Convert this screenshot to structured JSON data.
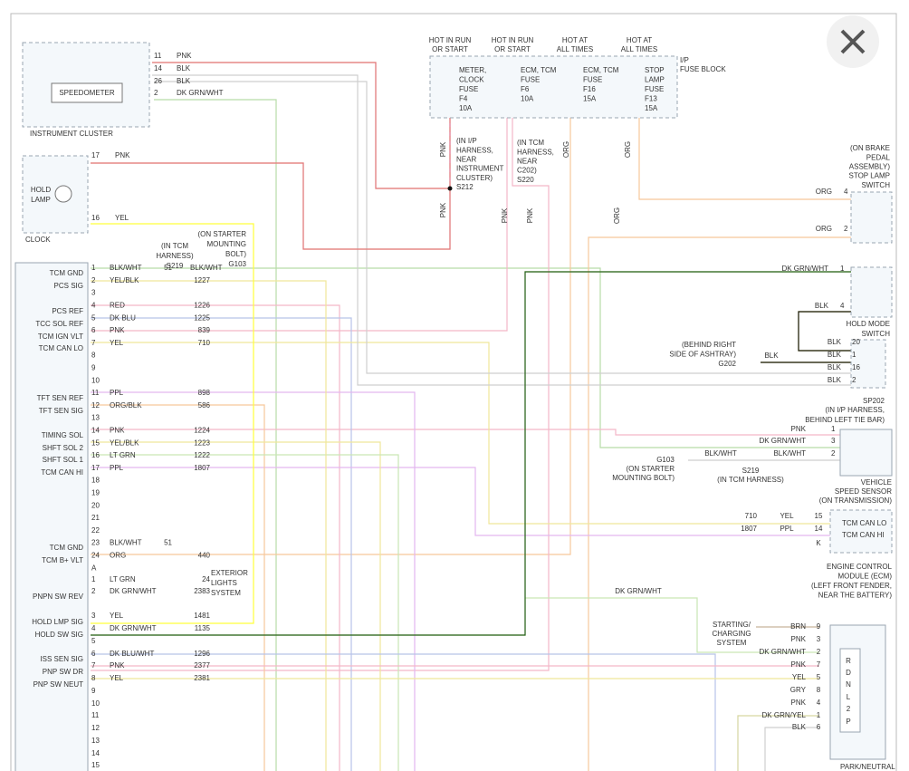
{
  "fuse_block": {
    "headers": [
      [
        "HOT IN RUN",
        "OR START"
      ],
      [
        "HOT IN RUN",
        "OR START"
      ],
      [
        "HOT AT",
        "ALL TIMES"
      ],
      [
        "HOT AT",
        "ALL TIMES"
      ]
    ],
    "label": [
      "I/P",
      "FUSE BLOCK"
    ],
    "fuses": [
      [
        "METER,",
        "CLOCK",
        "FUSE",
        "F4",
        "10A"
      ],
      [
        "ECM, TCM",
        "FUSE",
        "F6",
        "10A"
      ],
      [
        "ECM, TCM",
        "FUSE",
        "F16",
        "15A"
      ],
      [
        "STOP",
        "LAMP",
        "FUSE",
        "F13",
        "15A"
      ]
    ]
  },
  "instrument_cluster": {
    "component": "SPEEDOMETER",
    "label": "INSTRUMENT CLUSTER",
    "pins": [
      [
        "11",
        "PNK"
      ],
      [
        "14",
        "BLK"
      ],
      [
        "26",
        "BLK"
      ],
      [
        "2",
        "DK GRN/WHT"
      ]
    ]
  },
  "clock": {
    "component": [
      "HOLD",
      "LAMP"
    ],
    "label": "CLOCK",
    "pins": [
      [
        "17",
        "PNK"
      ],
      [
        "16",
        "YEL"
      ]
    ]
  },
  "splices": {
    "s212": [
      "(IN I/P",
      "HARNESS,",
      "NEAR",
      "INSTRUMENT",
      "CLUSTER)",
      "S212"
    ],
    "s220": [
      "(IN TCM",
      "HARNESS,",
      "NEAR",
      "C202)",
      "S220"
    ],
    "s219": [
      "(IN TCM",
      "HARNESS)",
      "S219"
    ],
    "g103": [
      "(ON STARTER",
      "MOUNTING",
      "BOLT)",
      "G103"
    ]
  },
  "wire_labels": [
    "PNK",
    "ORG",
    "ORG",
    "PNK",
    "PNK",
    "PNK",
    "ORG"
  ],
  "stop_lamp_switch": {
    "label": [
      "(ON BRAKE",
      "PEDAL",
      "ASSEMBLY)",
      "STOP LAMP",
      "SWITCH"
    ],
    "pins": [
      [
        "ORG",
        "4"
      ],
      [
        "ORG",
        "2"
      ]
    ]
  },
  "hold_mode_switch": {
    "label": [
      "HOLD MODE",
      "SWITCH"
    ],
    "pins": [
      [
        "DK GRN/WHT",
        "1"
      ],
      [
        "BLK",
        "4"
      ]
    ]
  },
  "sp202": {
    "pins": [
      [
        "BLK",
        "20"
      ],
      [
        "BLK",
        "1"
      ],
      [
        "BLK",
        "16"
      ],
      [
        "BLK",
        "2"
      ]
    ],
    "label": "SP202",
    "location": [
      "(IN I/P HARNESS,",
      "BEHIND LEFT TIE BAR)"
    ]
  },
  "g202": {
    "label": [
      "(BEHIND RIGHT",
      "SIDE OF ASHTRAY)",
      "G202"
    ],
    "wire": "BLK"
  },
  "vss": {
    "pins": [
      [
        "PNK",
        "1"
      ],
      [
        "DK GRN/WHT",
        "3"
      ],
      [
        "BLK/WHT",
        "2"
      ]
    ],
    "label": [
      "VEHICLE",
      "SPEED SENSOR",
      "(ON TRANSMISSION)"
    ]
  },
  "g103_lower": {
    "label": [
      "G103",
      "(ON STARTER",
      "MOUNTING BOLT)"
    ],
    "wire": "BLK/WHT",
    "splice": [
      "S219",
      "(IN TCM HARNESS)"
    ]
  },
  "ecm": {
    "pins": [
      [
        "710",
        "YEL",
        "15"
      ],
      [
        "1807",
        "PPL",
        "14"
      ]
    ],
    "terminals": [
      "TCM CAN LO",
      "TCM CAN HI"
    ],
    "connector": "K",
    "label": [
      "ENGINE CONTROL",
      "MODULE (ECM)",
      "(LEFT FRONT FENDER,",
      "NEAR THE BATTERY)"
    ]
  },
  "pnp": {
    "system": [
      "STARTING/",
      "CHARGING",
      "SYSTEM"
    ],
    "feed": "DK GRN/WHT",
    "pins": [
      [
        "BRN",
        "9"
      ],
      [
        "PNK",
        "3"
      ],
      [
        "DK GRN/WHT",
        "2"
      ],
      [
        "PNK",
        "7"
      ],
      [
        "YEL",
        "5"
      ],
      [
        "GRY",
        "8"
      ],
      [
        "PNK",
        "4"
      ],
      [
        "DK GRN/YEL",
        "1"
      ],
      [
        "BLK",
        "6"
      ]
    ],
    "positions": [
      "R",
      "D",
      "N",
      "L",
      "2",
      "P"
    ],
    "label": "PARK/NEUTRAL"
  },
  "tcm": {
    "functions": [
      "TCM GND",
      "PCS SIG",
      "PCS REF",
      "TCC SOL REF",
      "TCM IGN VLT",
      "TCM CAN LO",
      "TFT SEN REF",
      "TFT SEN SIG",
      "TIMING SOL",
      "SHFT SOL 2",
      "SHFT SOL 1",
      "TCM CAN HI",
      "TCM GND",
      "TCM B+ VLT",
      "PNPN SW REV",
      "HOLD LMP SIG",
      "HOLD SW SIG",
      "ISS SEN SIG",
      "PNP SW DR",
      "PNP SW NEUT"
    ],
    "connector_1": [
      {
        "pin": "1",
        "color": "BLK/WHT",
        "splice": "51",
        "splice_color": "BLK/WHT"
      },
      {
        "pin": "2",
        "color": "YEL/BLK",
        "circuit": "1227"
      },
      {
        "pin": "3"
      },
      {
        "pin": "4",
        "color": "RED",
        "circuit": "1226"
      },
      {
        "pin": "5",
        "color": "DK BLU",
        "circuit": "1225"
      },
      {
        "pin": "6",
        "color": "PNK",
        "circuit": "839"
      },
      {
        "pin": "7",
        "color": "YEL",
        "circuit": "710"
      },
      {
        "pin": "8"
      },
      {
        "pin": "9"
      },
      {
        "pin": "10"
      },
      {
        "pin": "11",
        "color": "PPL",
        "circuit": "898"
      },
      {
        "pin": "12",
        "color": "ORG/BLK",
        "circuit": "586"
      },
      {
        "pin": "13"
      },
      {
        "pin": "14",
        "color": "PNK",
        "circuit": "1224"
      },
      {
        "pin": "15",
        "color": "YEL/BLK",
        "circuit": "1223"
      },
      {
        "pin": "16",
        "color": "LT GRN",
        "circuit": "1222"
      },
      {
        "pin": "17",
        "color": "PPL",
        "circuit": "1807"
      },
      {
        "pin": "18"
      },
      {
        "pin": "19"
      },
      {
        "pin": "20"
      },
      {
        "pin": "21"
      },
      {
        "pin": "22"
      },
      {
        "pin": "23",
        "color": "BLK/WHT",
        "splice": "51"
      },
      {
        "pin": "24",
        "color": "ORG",
        "circuit": "440"
      },
      {
        "pin": "A"
      }
    ],
    "connector_2": [
      {
        "pin": "1",
        "color": "LT GRN",
        "circuit": "24"
      },
      {
        "pin": "2",
        "color": "DK GRN/WHT",
        "circuit": "2383"
      },
      {
        "pin": "3",
        "color": "YEL",
        "circuit": "1481"
      },
      {
        "pin": "4",
        "color": "DK GRN/WHT",
        "circuit": "1135"
      },
      {
        "pin": "5"
      },
      {
        "pin": "6",
        "color": "DK BLU/WHT",
        "circuit": "1296"
      },
      {
        "pin": "7",
        "color": "PNK",
        "circuit": "2377"
      },
      {
        "pin": "8",
        "color": "YEL",
        "circuit": "2381"
      },
      {
        "pin": "9"
      },
      {
        "pin": "10"
      },
      {
        "pin": "11"
      },
      {
        "pin": "12"
      },
      {
        "pin": "13"
      },
      {
        "pin": "14"
      },
      {
        "pin": "15"
      }
    ],
    "exterior_lights": [
      "EXTERIOR",
      "LIGHTS",
      "SYSTEM"
    ]
  }
}
